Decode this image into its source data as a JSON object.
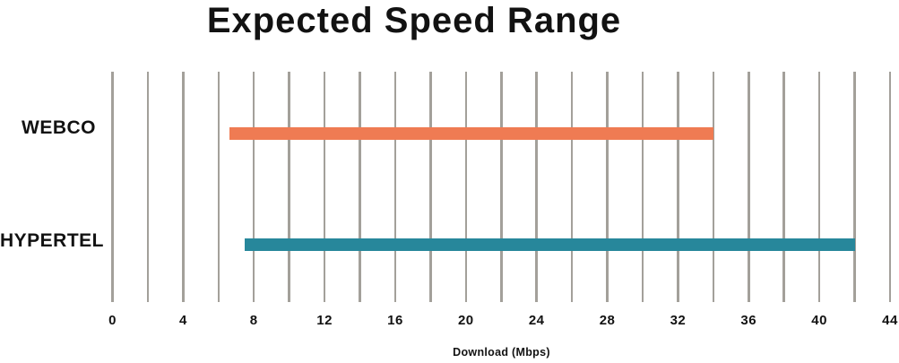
{
  "chart_data": {
    "type": "bar",
    "variant": "horizontal-range",
    "title": "Expected Speed Range",
    "xlabel": "Download (Mbps)",
    "xlim": [
      0,
      44
    ],
    "x_ticks": [
      0,
      4,
      8,
      12,
      16,
      20,
      24,
      28,
      32,
      36,
      40,
      44
    ],
    "gridline_step": 2,
    "grid": true,
    "legend": false,
    "categories": [
      "WEBCO",
      "HYPERTEL"
    ],
    "bars": [
      {
        "category": "WEBCO",
        "min": 6.6,
        "max": 34,
        "color": "#EF7B53"
      },
      {
        "category": "HYPERTEL",
        "min": 7.5,
        "max": 42,
        "color": "#27879B"
      }
    ],
    "colors": {
      "gridline": "#A3A09A",
      "text": "#121212",
      "background": "#FFFFFF"
    }
  }
}
